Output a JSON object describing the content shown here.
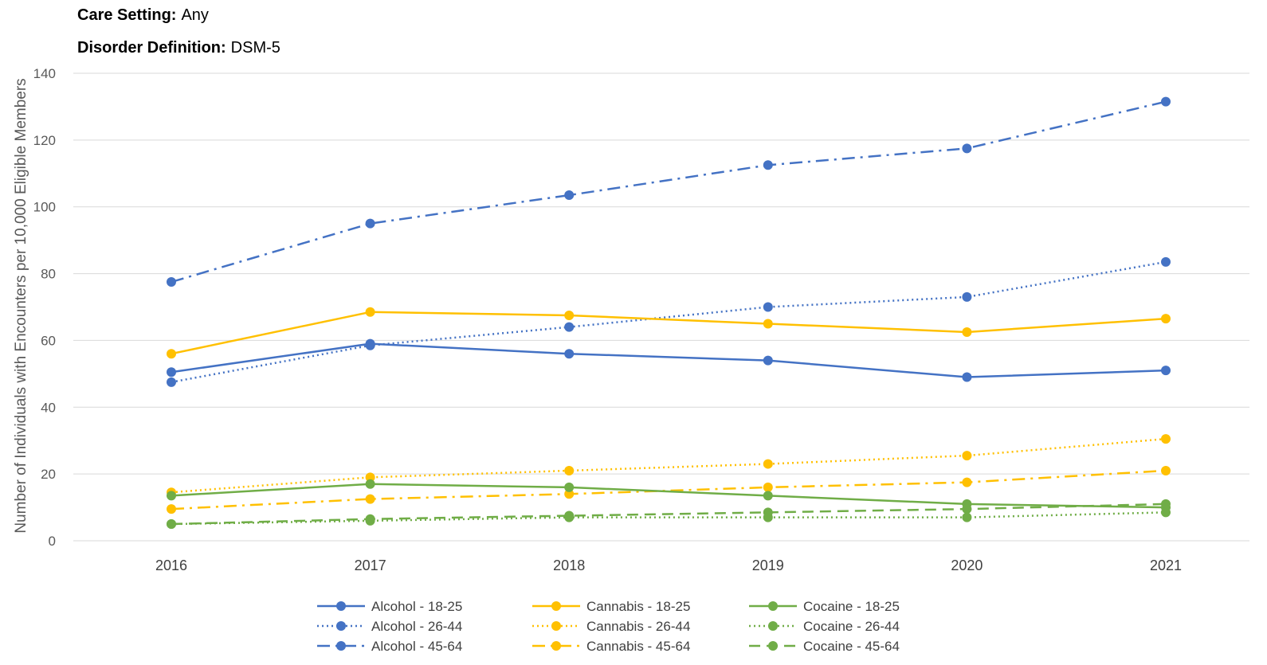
{
  "filters": {
    "care_setting_label": "Care Setting:",
    "care_setting_value": "Any",
    "disorder_label": "Disorder Definition:",
    "disorder_value": "DSM-5"
  },
  "chart_data": {
    "type": "line",
    "title": "",
    "xlabel": "",
    "ylabel": "Number of Individuals with Encounters per 10,000 Eligible Members",
    "x": [
      "2016",
      "2017",
      "2018",
      "2019",
      "2020",
      "2021"
    ],
    "ylim": [
      0,
      140
    ],
    "yticks": [
      0,
      20,
      40,
      60,
      80,
      100,
      120,
      140
    ],
    "grid": true,
    "legend_position": "bottom",
    "series": [
      {
        "name": "Alcohol - 18-25",
        "color": "#4472C4",
        "dash": "solid",
        "values": [
          50.5,
          59,
          56,
          54,
          49,
          51
        ]
      },
      {
        "name": "Alcohol - 26-44",
        "color": "#4472C4",
        "dash": "dot",
        "values": [
          47.5,
          58.5,
          64,
          70,
          73,
          83.5
        ]
      },
      {
        "name": "Alcohol - 45-64",
        "color": "#4472C4",
        "dash": "dashdot",
        "values": [
          77.5,
          95,
          103.5,
          112.5,
          117.5,
          131.5
        ]
      },
      {
        "name": "Cannabis - 18-25",
        "color": "#FFC000",
        "dash": "solid",
        "values": [
          56,
          68.5,
          67.5,
          65,
          62.5,
          66.5
        ]
      },
      {
        "name": "Cannabis - 26-44",
        "color": "#FFC000",
        "dash": "dot",
        "values": [
          14.5,
          19,
          21,
          23,
          25.5,
          30.5
        ]
      },
      {
        "name": "Cannabis - 45-64",
        "color": "#FFC000",
        "dash": "dashdot",
        "values": [
          9.5,
          12.5,
          14,
          16,
          17.5,
          21
        ]
      },
      {
        "name": "Cocaine - 18-25",
        "color": "#70AD47",
        "dash": "solid",
        "values": [
          13.5,
          17,
          16,
          13.5,
          11,
          10
        ]
      },
      {
        "name": "Cocaine - 26-44",
        "color": "#70AD47",
        "dash": "dot",
        "values": [
          5,
          6,
          7,
          7,
          7,
          8.5
        ]
      },
      {
        "name": "Cocaine - 45-64",
        "color": "#70AD47",
        "dash": "dash",
        "values": [
          5,
          6.5,
          7.5,
          8.5,
          9.5,
          11
        ]
      }
    ]
  }
}
